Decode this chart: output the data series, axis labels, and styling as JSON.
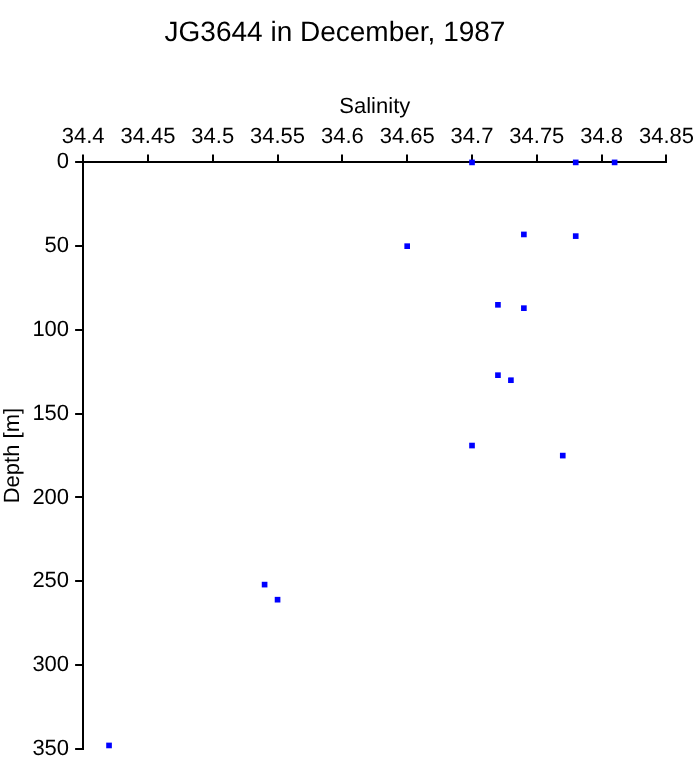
{
  "chart_data": {
    "type": "scatter",
    "title": "JG3644 in December, 1987",
    "xlabel": "Salinity",
    "ylabel": "Depth [m]",
    "xlim": [
      34.4,
      34.85
    ],
    "xticks": [
      34.4,
      34.45,
      34.5,
      34.55,
      34.6,
      34.65,
      34.7,
      34.75,
      34.8,
      34.85
    ],
    "ylim": [
      350,
      0
    ],
    "yticks": [
      0,
      50,
      100,
      150,
      200,
      250,
      300,
      350
    ],
    "marker": "square",
    "series": [
      {
        "color": "#0000ff",
        "x": [
          34.7,
          34.78,
          34.81,
          34.74,
          34.78,
          34.65,
          34.72,
          34.74,
          34.72,
          34.73,
          34.7,
          34.77,
          34.54,
          34.55,
          34.42
        ],
        "values": [
          0,
          0,
          0,
          43,
          44,
          50,
          85,
          87,
          127,
          130,
          169,
          175,
          252,
          261,
          348
        ]
      }
    ]
  }
}
